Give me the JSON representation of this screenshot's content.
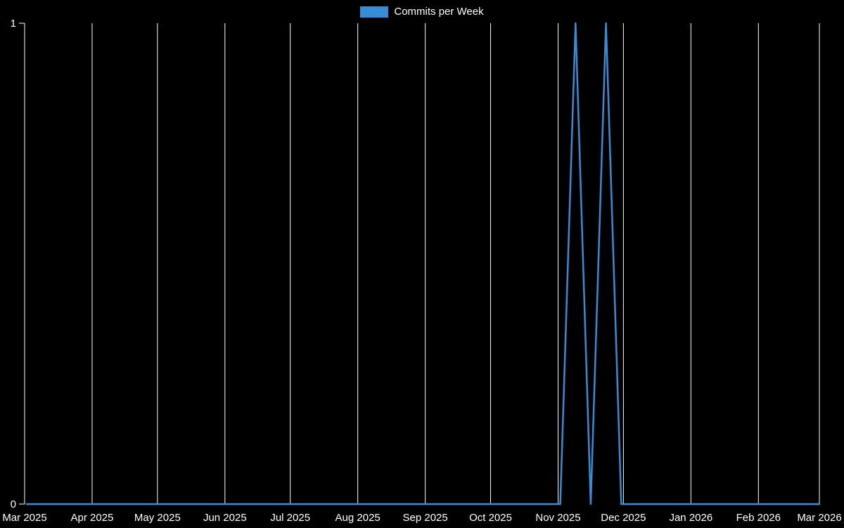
{
  "page": {
    "background": "#000000"
  },
  "chart_data": {
    "type": "line",
    "title": "",
    "xlabel": "",
    "ylabel": "",
    "legend_position": "top",
    "grid": {
      "vertical": true,
      "horizontal": false,
      "color": "#ffffff"
    },
    "axis_color": "#ffffff",
    "text_color": "#ffffff",
    "ylim": [
      0,
      1
    ],
    "x_range": [
      "2025-03-01",
      "2026-03-01"
    ],
    "y_ticks": [
      {
        "label": "0",
        "value": 0
      },
      {
        "label": "1",
        "value": 1
      }
    ],
    "x_ticks": [
      {
        "label": "Mar 2025",
        "date": "2025-03-01"
      },
      {
        "label": "Apr 2025",
        "date": "2025-04-01"
      },
      {
        "label": "May 2025",
        "date": "2025-05-01"
      },
      {
        "label": "Jun 2025",
        "date": "2025-06-01"
      },
      {
        "label": "Jul 2025",
        "date": "2025-07-01"
      },
      {
        "label": "Aug 2025",
        "date": "2025-08-01"
      },
      {
        "label": "Sep 2025",
        "date": "2025-09-01"
      },
      {
        "label": "Oct 2025",
        "date": "2025-10-01"
      },
      {
        "label": "Nov 2025",
        "date": "2025-11-01"
      },
      {
        "label": "Dec 2025",
        "date": "2025-12-01"
      },
      {
        "label": "Jan 2026",
        "date": "2026-01-01"
      },
      {
        "label": "Feb 2026",
        "date": "2026-02-01"
      },
      {
        "label": "Mar 2026",
        "date": "2026-03-01"
      }
    ],
    "x": [
      "2025-03-02",
      "2025-03-09",
      "2025-03-16",
      "2025-03-23",
      "2025-03-30",
      "2025-04-06",
      "2025-04-13",
      "2025-04-20",
      "2025-04-27",
      "2025-05-04",
      "2025-05-11",
      "2025-05-18",
      "2025-05-25",
      "2025-06-01",
      "2025-06-08",
      "2025-06-15",
      "2025-06-22",
      "2025-06-29",
      "2025-07-06",
      "2025-07-13",
      "2025-07-20",
      "2025-07-27",
      "2025-08-03",
      "2025-08-10",
      "2025-08-17",
      "2025-08-24",
      "2025-08-31",
      "2025-09-07",
      "2025-09-14",
      "2025-09-21",
      "2025-09-28",
      "2025-10-05",
      "2025-10-12",
      "2025-10-19",
      "2025-10-26",
      "2025-11-02",
      "2025-11-09",
      "2025-11-16",
      "2025-11-23",
      "2025-11-30",
      "2025-12-07",
      "2025-12-14",
      "2025-12-21",
      "2025-12-28",
      "2026-01-04",
      "2026-01-11",
      "2026-01-18",
      "2026-01-25",
      "2026-02-01",
      "2026-02-08",
      "2026-02-15",
      "2026-02-22",
      "2026-03-01"
    ],
    "series": [
      {
        "name": "Commits per Week",
        "color": "#3a8bd5",
        "values": [
          0,
          0,
          0,
          0,
          0,
          0,
          0,
          0,
          0,
          0,
          0,
          0,
          0,
          0,
          0,
          0,
          0,
          0,
          0,
          0,
          0,
          0,
          0,
          0,
          0,
          0,
          0,
          0,
          0,
          0,
          0,
          0,
          0,
          0,
          0,
          0,
          1,
          0,
          1,
          0,
          0,
          0,
          0,
          0,
          0,
          0,
          0,
          0,
          0,
          0,
          0,
          0,
          0
        ]
      }
    ]
  }
}
